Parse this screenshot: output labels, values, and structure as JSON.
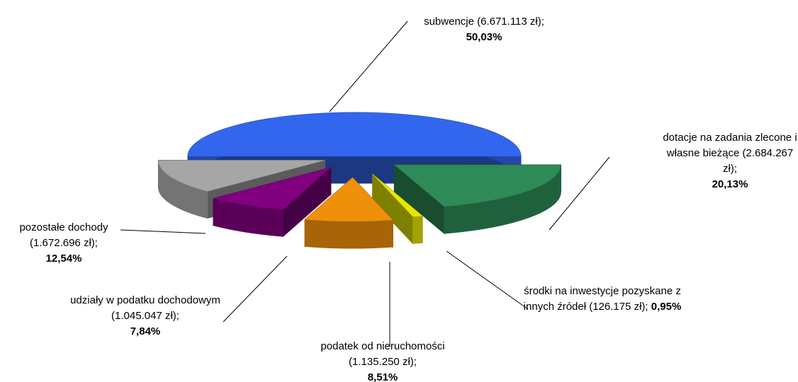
{
  "chart_data": {
    "type": "pie",
    "categories": [
      "subwencje (6.671.113 zł);",
      "dotacje na zadania zlecone i własne bieżące (2.684.267 zł);",
      "środki na inwestycje pozyskane z innych źródeł (126.175 zł);",
      "podatek od nieruchomości (1.135.250 zł);",
      "udziały w podatku dochodowym (1.045.047 zł);",
      "pozostałe dochody (1.672.696 zł);"
    ],
    "values": [
      50.03,
      20.13,
      0.95,
      8.51,
      7.84,
      12.54
    ],
    "value_labels": [
      "50,03%",
      "20,13%",
      "0,95%",
      "8,51%",
      "7,84%",
      "12,54%"
    ],
    "colors": [
      "#3366ee",
      "#2e8b57",
      "#e8e800",
      "#f0900a",
      "#800080",
      "#a6a6a6"
    ]
  }
}
